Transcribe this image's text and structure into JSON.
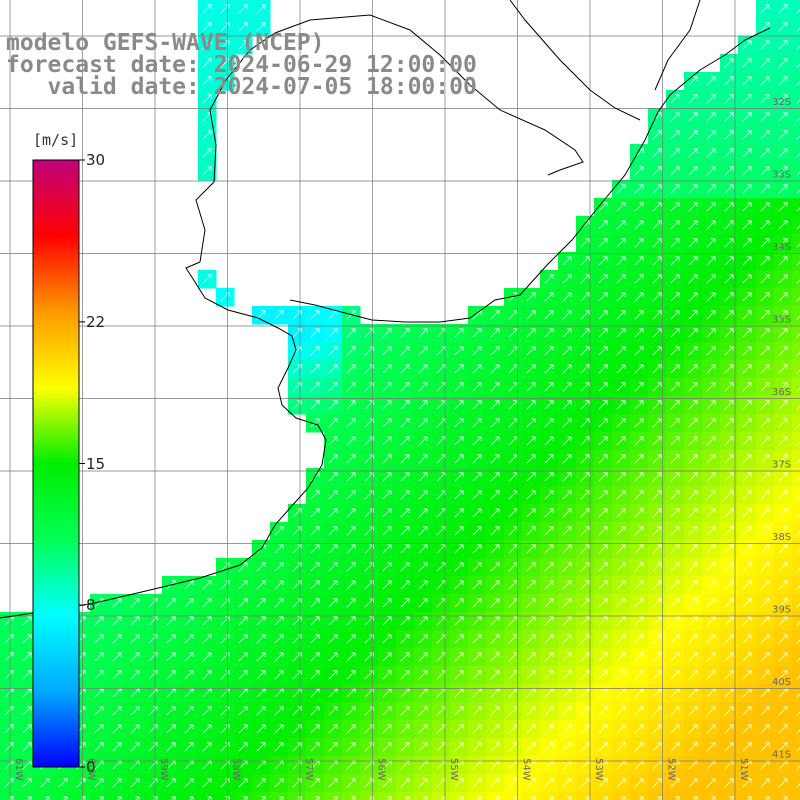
{
  "title": {
    "line1": "modelo GEFS-WAVE (NCEP)",
    "line2": "forecast date: 2024-06-29 12:00:00",
    "line3": "   valid date: 2024-07-05 18:00:00"
  },
  "colorbar": {
    "unit": "[m/s]",
    "ticks": [
      {
        "label": "30",
        "value": 30
      },
      {
        "label": "22",
        "value": 22
      },
      {
        "label": "15",
        "value": 15
      },
      {
        "label": "8",
        "value": 8
      },
      {
        "label": "0",
        "value": 0
      }
    ],
    "range": [
      0,
      30
    ],
    "colors": [
      "#0000ff",
      "#00aaff",
      "#00ffff",
      "#00ff55",
      "#00ee00",
      "#ffff00",
      "#ff9900",
      "#ff0000",
      "#c0007a"
    ]
  },
  "map": {
    "lon_labels": [
      "61W",
      "60W",
      "59W",
      "58W",
      "57W",
      "56W",
      "55W",
      "54W",
      "53W",
      "52W",
      "51W"
    ],
    "lat_labels": [
      "32S",
      "33S",
      "34S",
      "35S",
      "36S",
      "37S",
      "38S",
      "39S",
      "40S",
      "41S"
    ],
    "projection": "lat-lon grid",
    "arrow_color": "#ffffff",
    "field": "wind speed with wind direction arrows"
  }
}
